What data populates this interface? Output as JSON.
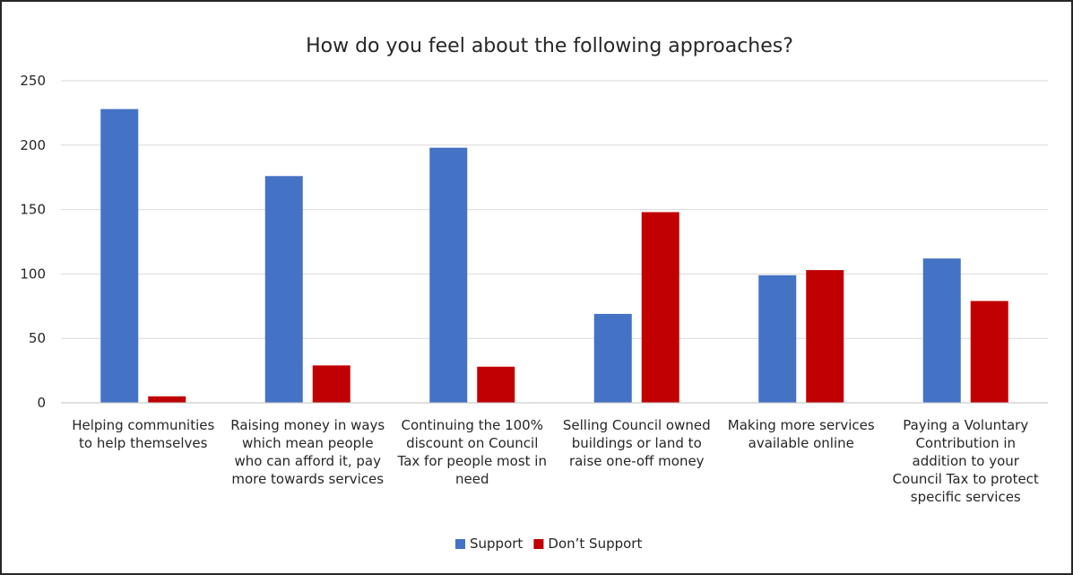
{
  "chart_data": {
    "type": "bar",
    "title": "How do you feel about the following approaches?",
    "categories": [
      [
        "Helping communities",
        "to help themselves"
      ],
      [
        "Raising money in ways",
        "which mean people",
        "who can afford it, pay",
        "more towards services"
      ],
      [
        "Continuing the 100%",
        "discount on Council",
        "Tax for people most in",
        "need"
      ],
      [
        "Selling Council owned",
        "buildings or land to",
        "raise one-off money"
      ],
      [
        "Making more services",
        "available online"
      ],
      [
        "Paying a Voluntary",
        "Contribution in",
        "addition to your",
        "Council Tax to protect",
        "specific services"
      ]
    ],
    "series": [
      {
        "name": "Support",
        "color": "#4472c4",
        "values": [
          228,
          176,
          198,
          69,
          99,
          112
        ]
      },
      {
        "name": "Don’t Support",
        "color": "#c00000",
        "values": [
          5,
          29,
          28,
          148,
          103,
          79
        ]
      }
    ],
    "ylim": [
      0,
      250
    ],
    "yticks": [
      0,
      50,
      100,
      150,
      200,
      250
    ],
    "grid": true,
    "legend": "bottom"
  }
}
